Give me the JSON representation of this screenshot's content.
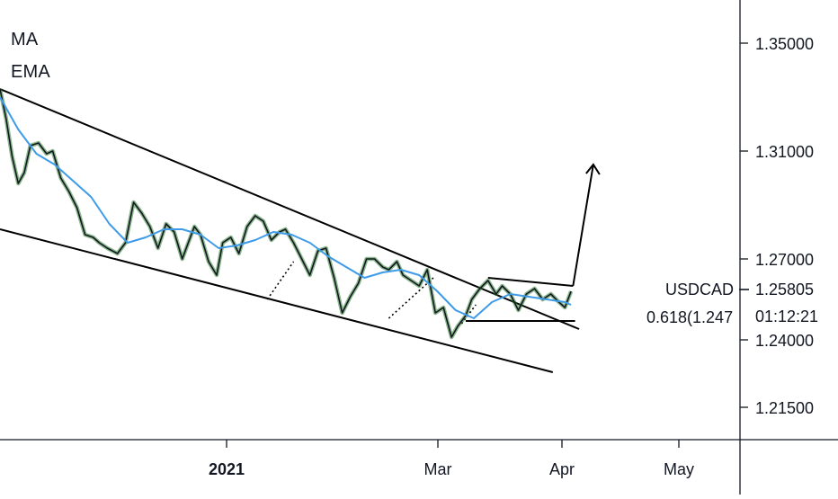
{
  "legend": {
    "ma_label": "MA",
    "ema_label": "EMA"
  },
  "symbol": "USDCAD",
  "last_price": "1.25805",
  "countdown": "01:12:21",
  "fib_label": "0.618(1.247",
  "colors": {
    "price": "#131722",
    "ma": "#3d9be9",
    "ema": "#2e7d32",
    "axis": "#131722",
    "lines": "#000000"
  },
  "chart_data": {
    "type": "line",
    "title": "",
    "xlabel": "",
    "ylabel": "",
    "grid": false,
    "x_ticks": [
      "2021",
      "Mar",
      "Apr",
      "May"
    ],
    "bold_ticks": [
      "2021"
    ],
    "y_ticks": [
      1.215,
      1.24,
      1.27,
      1.31,
      1.35
    ],
    "y_tick_labels": [
      "1.21500",
      "1.24000",
      "1.27000",
      "1.31000",
      "1.35000"
    ],
    "ylim": [
      1.203,
      1.366
    ],
    "last_value": 1.25805,
    "series": [
      {
        "role": "price",
        "x": [
          0.0,
          0.3,
          0.6,
          0.9,
          1.2,
          1.5,
          1.9,
          2.3,
          2.6,
          3.0,
          3.4,
          3.8,
          4.2,
          4.6,
          4.9,
          5.3,
          5.8,
          6.2,
          6.6,
          7.0,
          7.4,
          7.8,
          8.2,
          8.6,
          9.0,
          9.3,
          9.6,
          9.9,
          10.3,
          10.7,
          11.0,
          11.4,
          11.8,
          12.2,
          12.6,
          13.0,
          13.4,
          13.8,
          14.1,
          14.5,
          14.9,
          15.3,
          15.7,
          16.1,
          16.5,
          16.9,
          17.3,
          17.7,
          18.1,
          18.5,
          18.9,
          19.2,
          19.6,
          19.9,
          20.3,
          20.7,
          21.1,
          21.5,
          21.9,
          22.3,
          22.6,
          23.0,
          23.3,
          23.7,
          24.1,
          24.5,
          24.8,
          25.2,
          25.6,
          26.0,
          26.4,
          26.8,
          27.2,
          27.6,
          27.9,
          28.2
        ],
        "y": [
          1.333,
          1.322,
          1.308,
          1.298,
          1.302,
          1.312,
          1.313,
          1.309,
          1.31,
          1.3,
          1.295,
          1.289,
          1.279,
          1.278,
          1.276,
          1.274,
          1.272,
          1.276,
          1.291,
          1.287,
          1.282,
          1.274,
          1.283,
          1.28,
          1.27,
          1.276,
          1.282,
          1.279,
          1.269,
          1.264,
          1.276,
          1.278,
          1.272,
          1.282,
          1.286,
          1.284,
          1.277,
          1.28,
          1.281,
          1.276,
          1.27,
          1.264,
          1.273,
          1.274,
          1.263,
          1.25,
          1.256,
          1.261,
          1.27,
          1.27,
          1.267,
          1.266,
          1.269,
          1.264,
          1.262,
          1.26,
          1.266,
          1.25,
          1.252,
          1.241,
          1.245,
          1.249,
          1.255,
          1.259,
          1.262,
          1.257,
          1.26,
          1.257,
          1.251,
          1.257,
          1.259,
          1.255,
          1.257,
          1.254,
          1.252,
          1.258
        ]
      },
      {
        "role": "ma",
        "x": [
          0.0,
          0.9,
          1.8,
          2.7,
          3.6,
          4.5,
          5.4,
          6.3,
          7.2,
          8.1,
          9.0,
          9.9,
          10.8,
          11.7,
          12.6,
          13.5,
          14.4,
          15.3,
          16.2,
          17.1,
          18.0,
          18.9,
          19.8,
          20.7,
          21.6,
          22.5,
          23.4,
          24.3,
          25.2,
          26.1,
          27.0,
          27.9,
          28.2
        ],
        "y": [
          1.33,
          1.318,
          1.309,
          1.305,
          1.299,
          1.293,
          1.283,
          1.276,
          1.278,
          1.281,
          1.281,
          1.279,
          1.274,
          1.275,
          1.277,
          1.28,
          1.279,
          1.276,
          1.271,
          1.267,
          1.263,
          1.265,
          1.266,
          1.264,
          1.258,
          1.251,
          1.248,
          1.254,
          1.257,
          1.256,
          1.255,
          1.254,
          1.253
        ]
      }
    ],
    "drawings": [
      {
        "name": "upper-channel-line",
        "points": [
          [
            0.0,
            1.333
          ],
          [
            28.6,
            1.244
          ]
        ]
      },
      {
        "name": "lower-channel-line",
        "points": [
          [
            0.0,
            1.281
          ],
          [
            27.3,
            1.228
          ]
        ]
      },
      {
        "name": "flag-top-line",
        "points": [
          [
            24.1,
            1.263
          ],
          [
            28.3,
            1.26
          ]
        ]
      },
      {
        "name": "fib-0618-line",
        "points": [
          [
            23.0,
            1.247
          ],
          [
            28.4,
            1.247
          ]
        ]
      },
      {
        "name": "projection-arrow",
        "points": [
          [
            28.3,
            1.26
          ],
          [
            29.3,
            1.305
          ]
        ]
      },
      {
        "name": "dotted-line-1",
        "points": [
          [
            13.2,
            1.255
          ],
          [
            14.5,
            1.269
          ]
        ],
        "dotted": true
      },
      {
        "name": "dotted-line-2",
        "points": [
          [
            19.2,
            1.248
          ],
          [
            21.4,
            1.263
          ]
        ],
        "dotted": true
      },
      {
        "name": "dotted-line-3",
        "points": [
          [
            22.8,
            1.246
          ],
          [
            23.5,
            1.253
          ]
        ],
        "dotted": true
      }
    ]
  }
}
